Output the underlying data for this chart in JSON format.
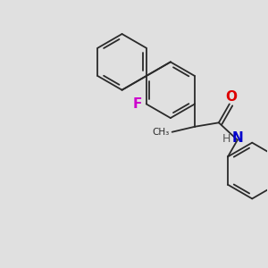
{
  "background_color": "#e0e0e0",
  "line_color": "#2a2a2a",
  "line_width": 1.3,
  "F_color": "#cc00cc",
  "O_color": "#dd0000",
  "N_color": "#0000cc",
  "H_color": "#555555",
  "font_size": 10,
  "figsize": [
    3.0,
    3.0
  ],
  "dpi": 100,
  "xlim": [
    0,
    10
  ],
  "ylim": [
    0,
    10
  ]
}
